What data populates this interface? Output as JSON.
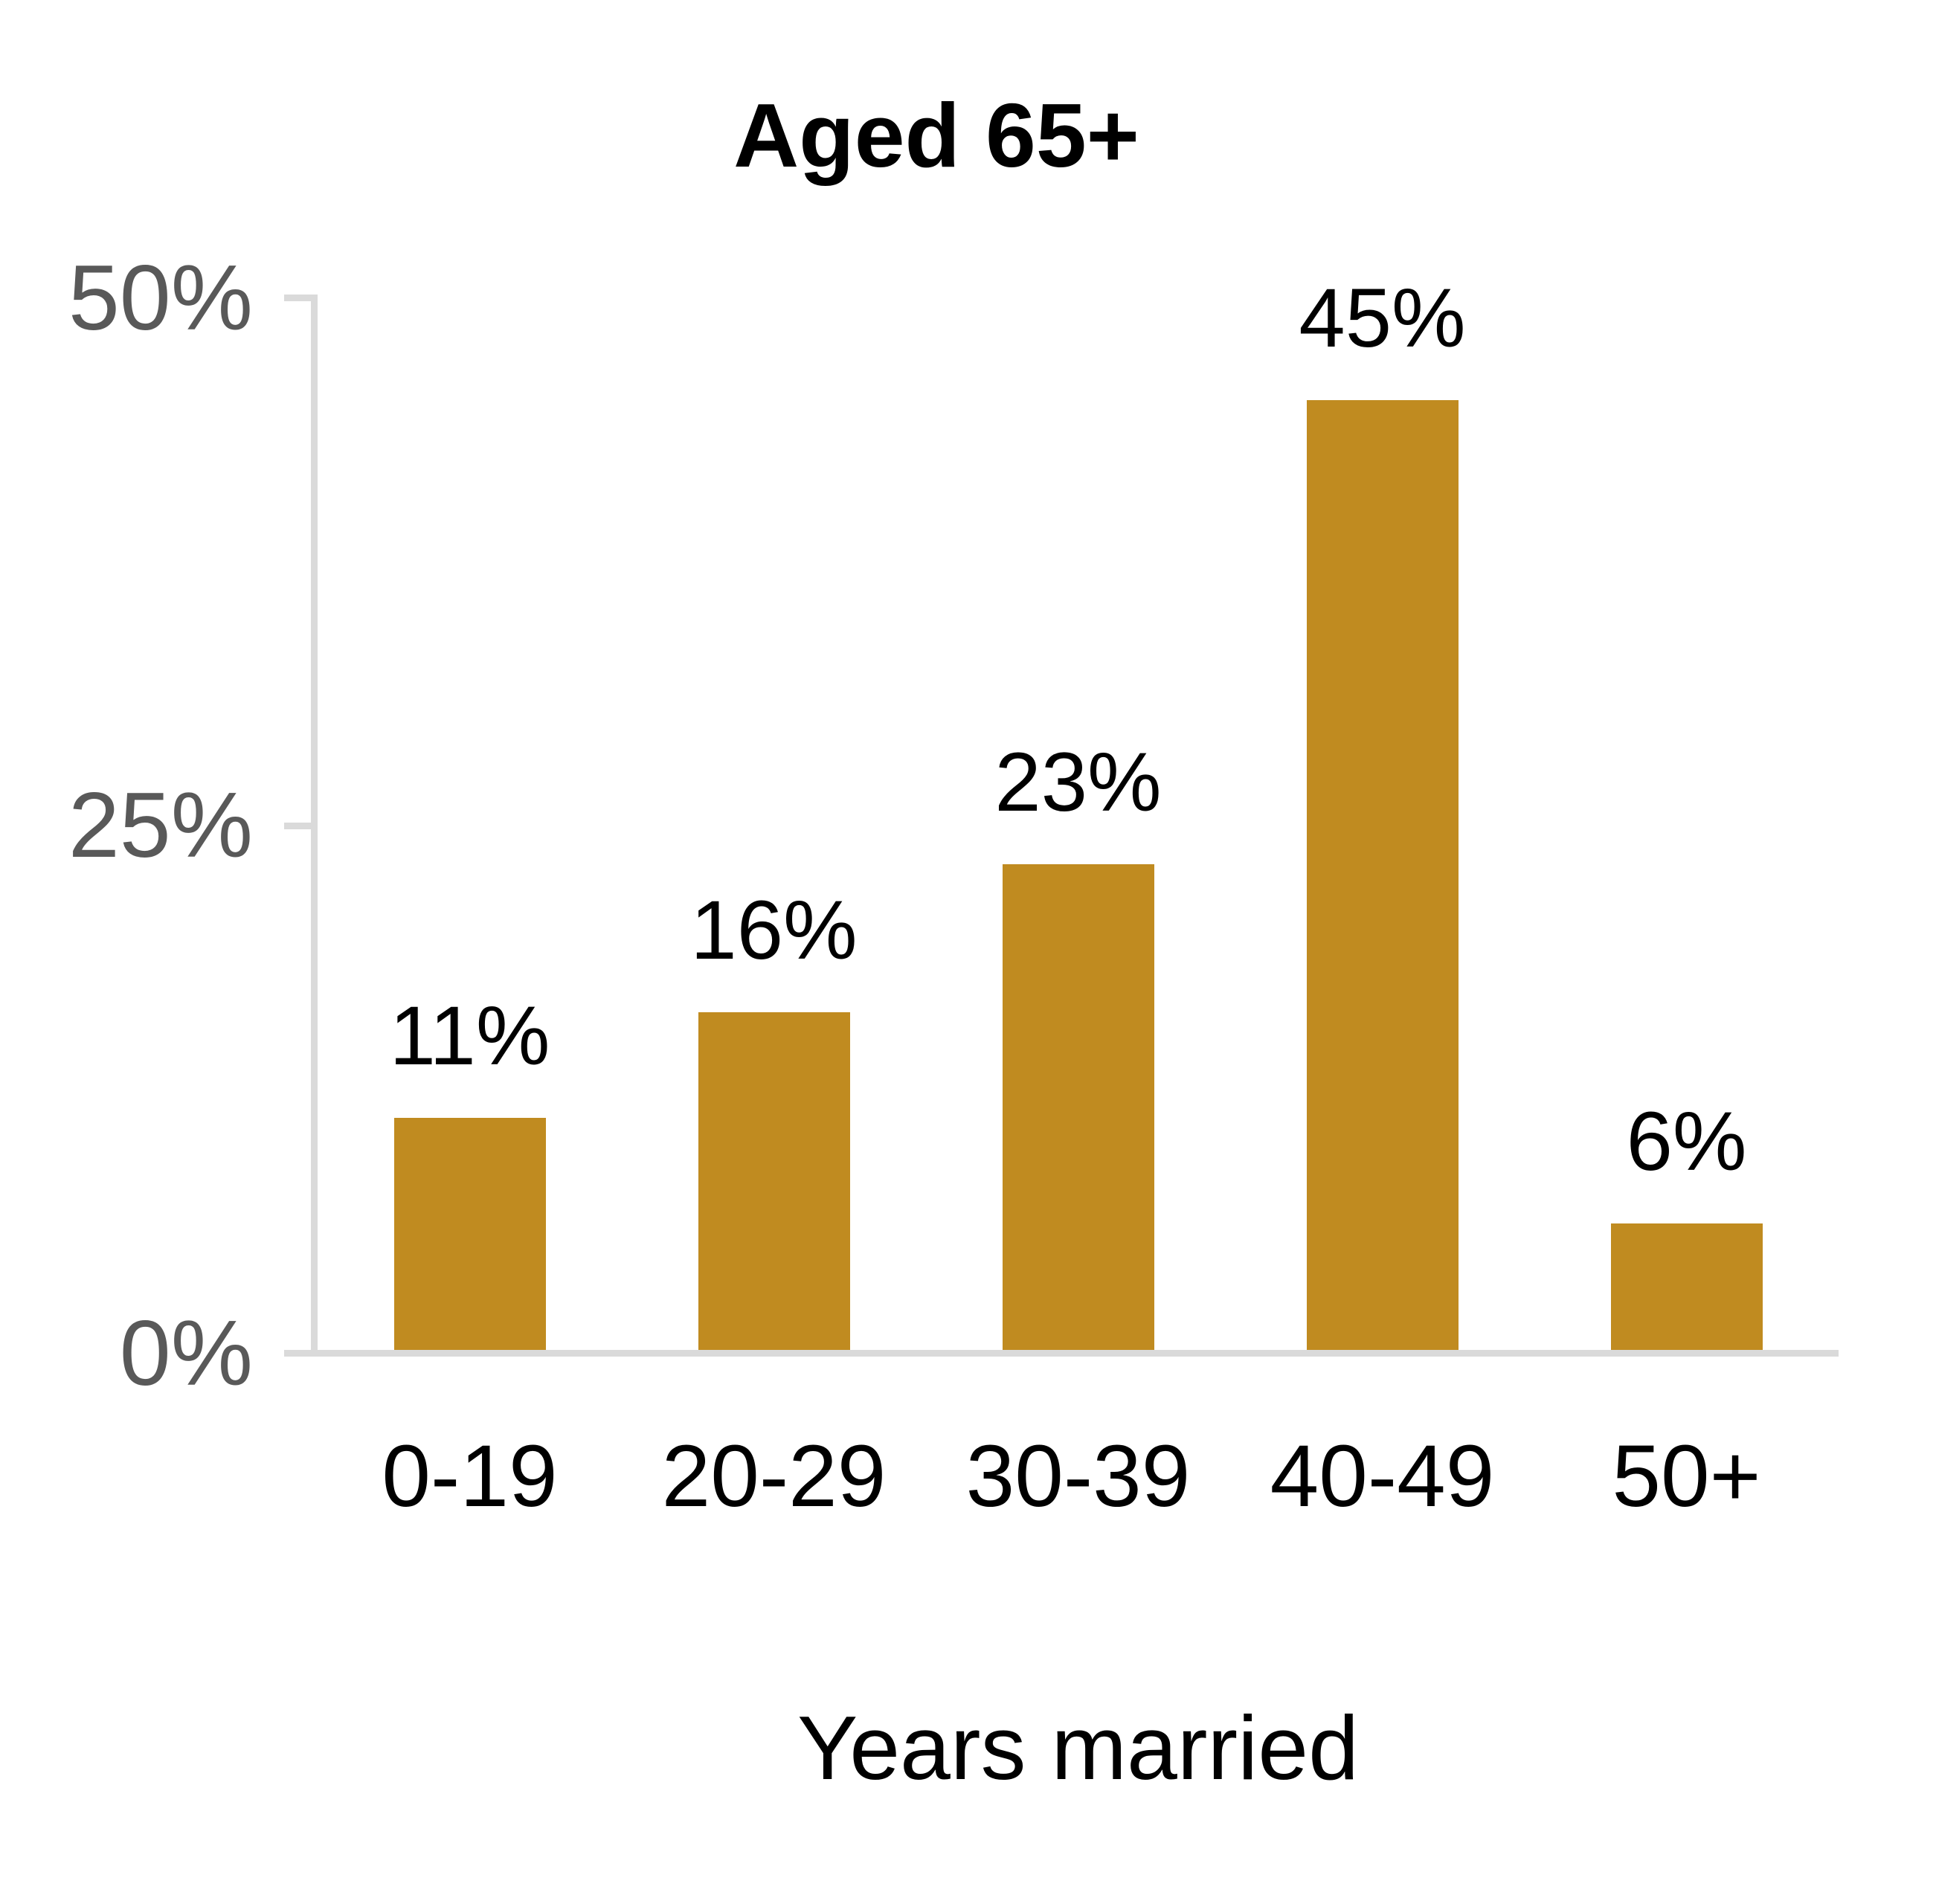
{
  "chart_data": {
    "type": "bar",
    "title": "Aged 65+",
    "xlabel": "Years married",
    "ylabel": "",
    "categories": [
      "0-19",
      "20-29",
      "30-39",
      "40-49",
      "50+"
    ],
    "values": [
      11,
      16,
      23,
      45,
      6
    ],
    "value_labels": [
      "11%",
      "16%",
      "23%",
      "45%",
      "6%"
    ],
    "ylim": [
      0,
      50
    ],
    "yticks": [
      {
        "value": 0,
        "label": "0%"
      },
      {
        "value": 25,
        "label": "25%"
      },
      {
        "value": 50,
        "label": "50%"
      }
    ],
    "grid": false,
    "legend": "none",
    "colors": {
      "bar": "#C08B20",
      "axis_line": "#DADADA",
      "tick_label": "#595959",
      "text": "#000000",
      "background": "#FFFFFF"
    }
  }
}
